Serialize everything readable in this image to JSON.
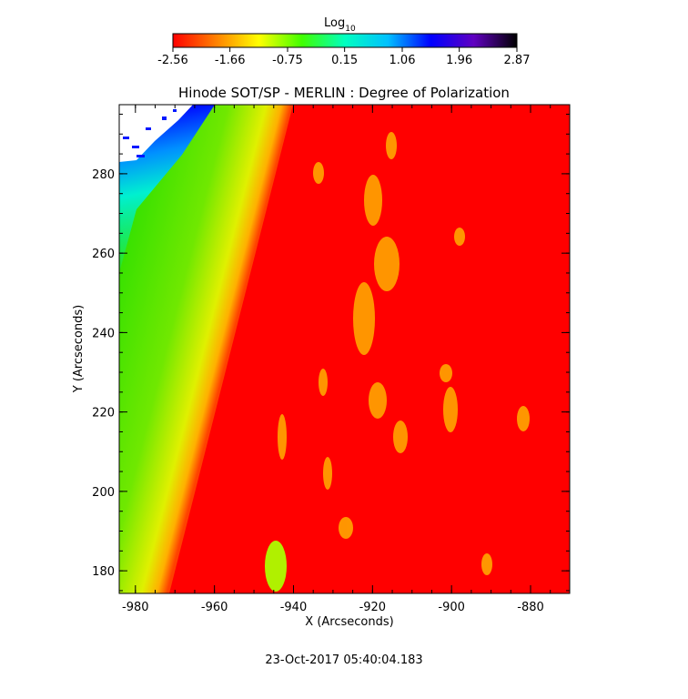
{
  "chart_data": {
    "type": "image",
    "title": "Hinode SOT/SP - MERLIN : Degree of Polarization",
    "xlabel": "X (Arcseconds)",
    "ylabel": "Y (Arcseconds)",
    "xlim": [
      -984.1,
      -870.1
    ],
    "ylim": [
      174.3,
      297.4
    ],
    "xticks": [
      -980,
      -960,
      -940,
      -920,
      -900,
      -880
    ],
    "yticks": [
      180,
      200,
      220,
      240,
      260,
      280
    ],
    "colorbar": {
      "label": "Log",
      "label_subscript": "10",
      "lim": [
        -2.56,
        2.87
      ],
      "ticks": [
        -2.56,
        -1.66,
        -0.75,
        0.15,
        1.06,
        1.96,
        2.87
      ],
      "colormap": [
        "#ff0000",
        "#ff8000",
        "#ffff00",
        "#40ff00",
        "#00ffc0",
        "#00c0ff",
        "#0000ff",
        "#6000c0",
        "#000000"
      ]
    },
    "footer": "23-Oct-2017 05:40:04.183"
  }
}
